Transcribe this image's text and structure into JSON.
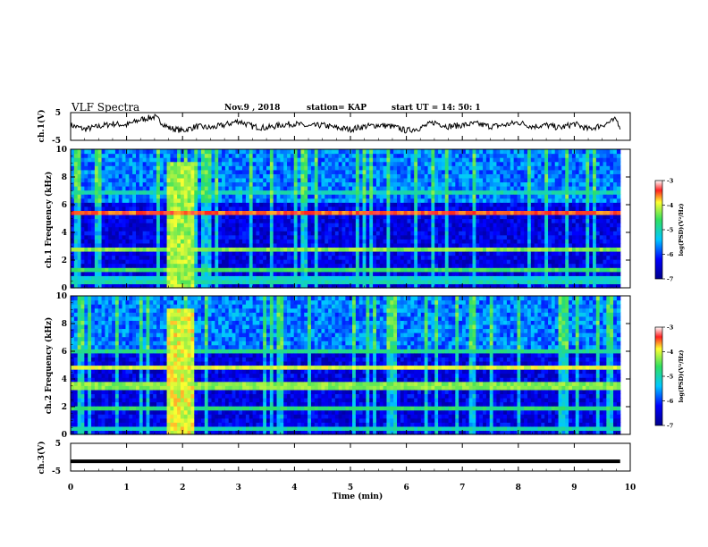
{
  "header": {
    "title": "VLF Spectra",
    "date": "Nov.9 , 2018",
    "station": "station= KAP",
    "start": "start UT = 14: 50: 1"
  },
  "colors": {
    "low": "#00008b",
    "mid": "#00c8ff",
    "green": "#30e060",
    "yellow": "#ffff30",
    "red": "#ff2020"
  },
  "chart_data": [
    {
      "type": "line",
      "name": "ch1-waveform",
      "ylabel": "ch.1(V)",
      "ylim": [
        -5,
        5
      ],
      "ytick_labels": [
        "5",
        "-5"
      ],
      "x": [
        0,
        0.25,
        0.5,
        0.75,
        1.0,
        1.25,
        1.5,
        1.75,
        2.0,
        2.25,
        2.5,
        2.75,
        3.0,
        3.25,
        3.5,
        3.75,
        4.0,
        4.25,
        4.5,
        4.75,
        5.0,
        5.25,
        5.5,
        5.75,
        6.0,
        6.25,
        6.5,
        6.75,
        7.0,
        7.25,
        7.5,
        7.75,
        8.0,
        8.25,
        8.5,
        8.75,
        9.0,
        9.25,
        9.5,
        9.75,
        9.82
      ],
      "y": [
        0.5,
        -1.0,
        0.0,
        1.0,
        0.5,
        2.5,
        3.5,
        -0.5,
        -1.5,
        0.0,
        -0.5,
        0.5,
        2.0,
        0.0,
        -0.5,
        0.5,
        1.0,
        0.0,
        0.5,
        -0.5,
        -1.0,
        0.0,
        0.5,
        0.0,
        -1.5,
        -0.5,
        1.5,
        0.0,
        0.5,
        1.0,
        0.0,
        0.5,
        1.5,
        0.0,
        0.5,
        -0.5,
        1.0,
        -1.0,
        0.5,
        2.5,
        0.0
      ]
    },
    {
      "type": "heatmap",
      "name": "ch1-spectrogram",
      "ylabel": "ch.1 Frequency (kHz)",
      "ylim": [
        0,
        10
      ],
      "yticks": [
        0,
        2,
        4,
        6,
        8,
        10
      ],
      "colorbar": {
        "label": "log(PSD)(V²/Hz)",
        "range": [
          -7,
          -3
        ],
        "ticks": [
          "-3",
          "-4",
          "-5",
          "-6",
          "-7"
        ]
      },
      "bands": [
        {
          "f": 0.2,
          "level": -5.0
        },
        {
          "f": 0.5,
          "level": -5.2
        },
        {
          "f": 1.2,
          "level": -4.6
        },
        {
          "f": 2.6,
          "level": -4.3
        },
        {
          "f": 5.2,
          "level": -3.5
        },
        {
          "f": 6.8,
          "level": -5.0
        }
      ],
      "burst": {
        "t_start": 1.7,
        "t_end": 2.2,
        "level": -4.2
      }
    },
    {
      "type": "heatmap",
      "name": "ch2-spectrogram",
      "ylabel": "ch.2 Frequency (kHz)",
      "ylim": [
        0,
        10
      ],
      "yticks": [
        0,
        2,
        4,
        6,
        8,
        10
      ],
      "colorbar": {
        "label": "log(PSD)(V²/Hz)",
        "range": [
          -7,
          -3
        ],
        "ticks": [
          "-3",
          "-4",
          "-5",
          "-6",
          "-7"
        ]
      },
      "bands": [
        {
          "f": 0.3,
          "level": -5.0
        },
        {
          "f": 1.8,
          "level": -4.7
        },
        {
          "f": 3.4,
          "level": -4.3
        },
        {
          "f": 4.8,
          "level": -4.0
        },
        {
          "f": 6.0,
          "level": -4.8
        }
      ],
      "burst": {
        "t_start": 1.7,
        "t_end": 2.2,
        "level": -4.0
      }
    },
    {
      "type": "line",
      "name": "ch3-waveform",
      "ylabel": "ch.3(V)",
      "ylim": [
        -5,
        5
      ],
      "ytick_labels": [
        "5",
        "-5"
      ],
      "x": [
        0,
        9.82
      ],
      "y": [
        -1.5,
        -1.5
      ]
    }
  ],
  "xaxis": {
    "label": "Time (min)",
    "range": [
      0,
      10
    ],
    "ticks": [
      0,
      1,
      2,
      3,
      4,
      5,
      6,
      7,
      8,
      9,
      10
    ]
  }
}
